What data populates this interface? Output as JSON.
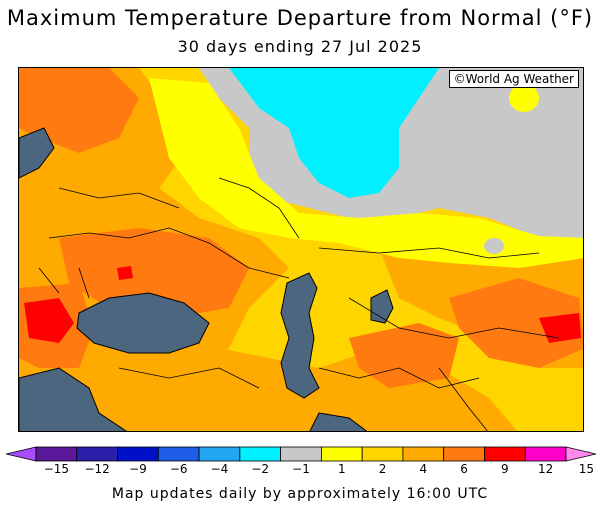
{
  "title": "Maximum Temperature Departure from Normal (°F)",
  "subtitle": "30 days ending 27 Jul 2025",
  "credit": "©World Ag Weather",
  "footer": "Map updates daily by approximately 16:00 UTC",
  "legend": {
    "ticks": [
      "−15",
      "−12",
      "−9",
      "−6",
      "−4",
      "−2",
      "−1",
      "1",
      "2",
      "4",
      "6",
      "9",
      "12",
      "15"
    ],
    "colors": [
      "#5a189a",
      "#2a1fa8",
      "#0010c8",
      "#1f5ce8",
      "#22a7f0",
      "#00f0ff",
      "#c8c8c8",
      "#ffff00",
      "#ffd500",
      "#ffaa00",
      "#ff7a10",
      "#ff0000",
      "#ff00c8"
    ],
    "below_color": "#a64dff",
    "above_color": "#ff88ee"
  },
  "map_colors": {
    "water": "#4d6680",
    "cyan": "#00f0ff",
    "gray": "#c8c8c8",
    "yellow": "#ffff00",
    "gold": "#ffd500",
    "orange": "#ffaa00",
    "darkorange": "#ff7a10",
    "red": "#ff0000"
  }
}
